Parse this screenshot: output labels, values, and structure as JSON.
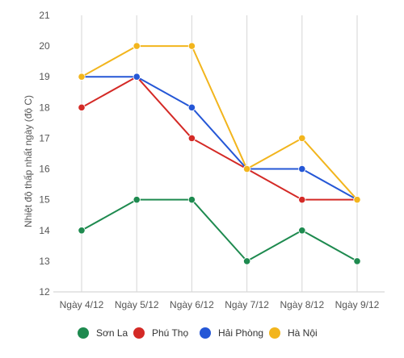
{
  "chart_data": {
    "type": "line",
    "title": "",
    "xlabel": "",
    "ylabel": "Nhiệt độ thấp nhất ngày (độ C)",
    "categories": [
      "Ngày 4/12",
      "Ngày 5/12",
      "Ngày 6/12",
      "Ngày 7/12",
      "Ngày 8/12",
      "Ngày 9/12"
    ],
    "ylim": [
      12,
      21
    ],
    "yticks": [
      12,
      13,
      14,
      15,
      16,
      17,
      18,
      19,
      20,
      21
    ],
    "grid": "vertical",
    "legend_position": "bottom",
    "series": [
      {
        "name": "Sơn La",
        "color": "#1e8a4f",
        "values": [
          14,
          15,
          15,
          13,
          14,
          13
        ]
      },
      {
        "name": "Phú Thọ",
        "color": "#d42a26",
        "values": [
          18,
          19,
          17,
          16,
          15,
          15
        ]
      },
      {
        "name": "Hải Phòng",
        "color": "#2557d6",
        "values": [
          19,
          19,
          18,
          16,
          16,
          15
        ]
      },
      {
        "name": "Hà Nội",
        "color": "#f2b51d",
        "values": [
          19,
          20,
          20,
          16,
          17,
          15
        ]
      }
    ]
  }
}
